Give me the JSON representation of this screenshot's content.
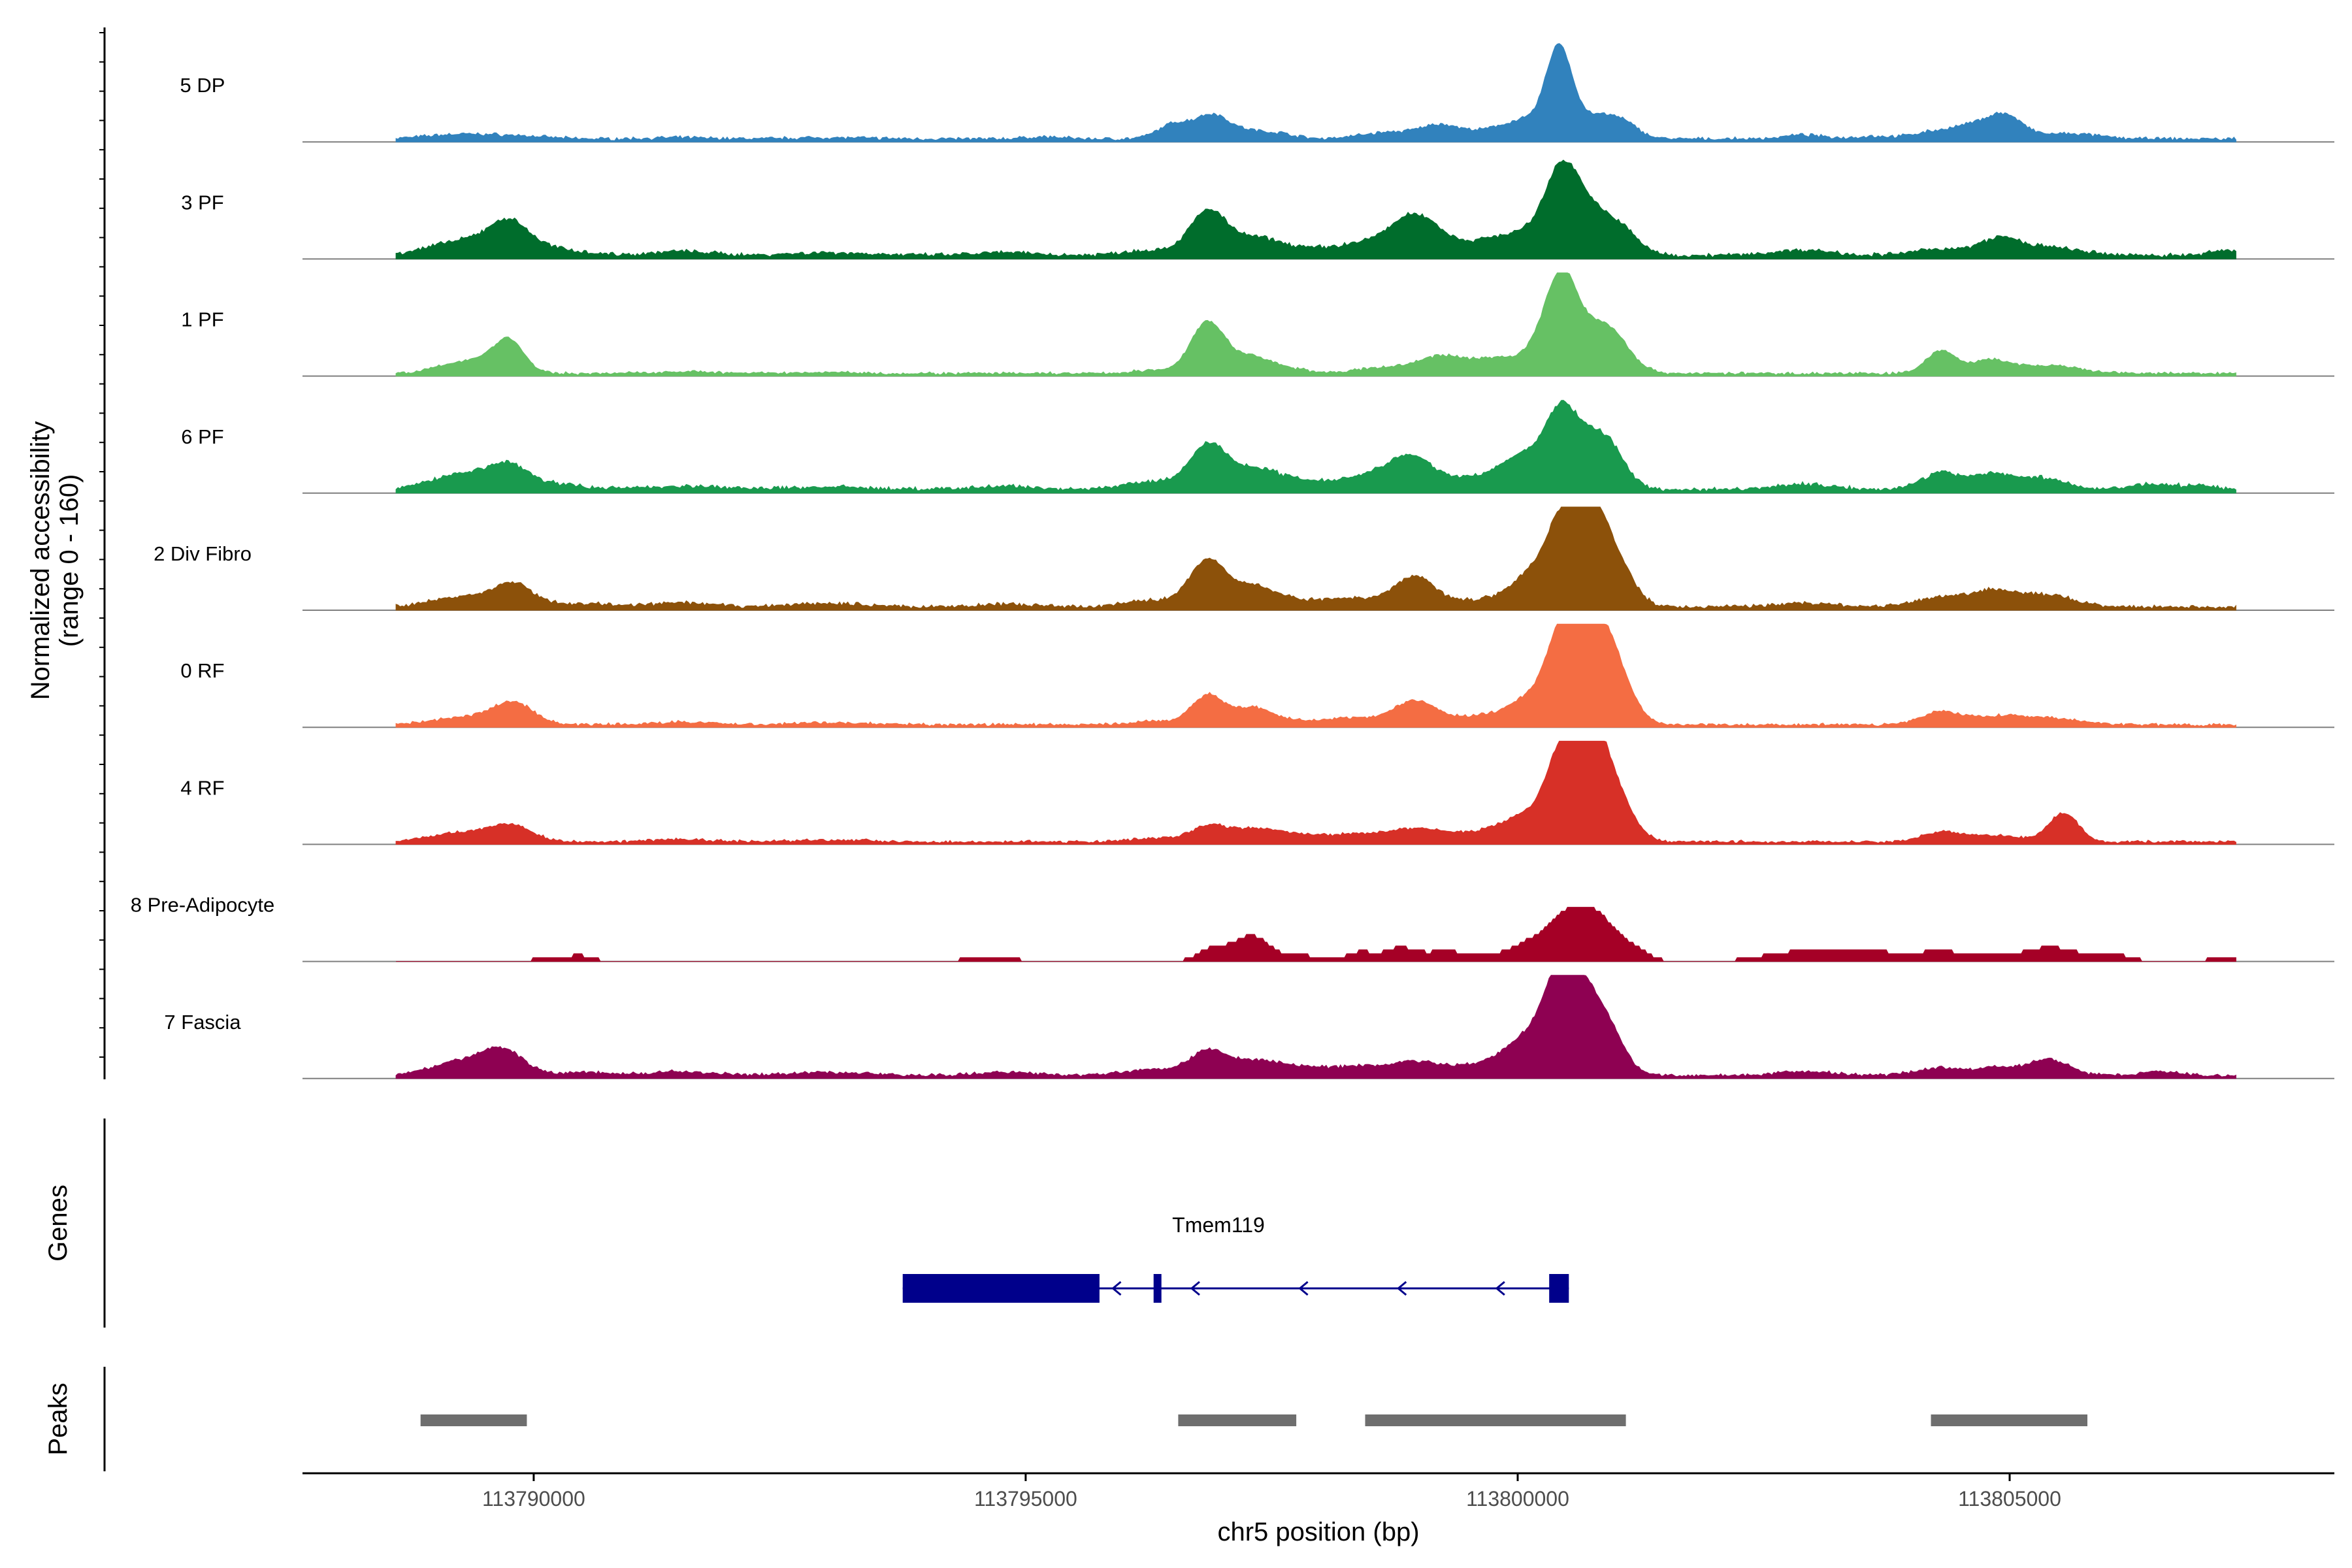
{
  "chart_data": {
    "type": "area",
    "title": "",
    "ylabel_lines": [
      "Normalized accessibility",
      "(range 0 - 160)"
    ],
    "ylim": [
      0,
      160
    ],
    "xlabel": "chr5 position (bp)",
    "xlim": [
      113787650,
      113808300
    ],
    "xticks": [
      {
        "value": 113790000,
        "label": "113790000"
      },
      {
        "value": 113795000,
        "label": "113795000"
      },
      {
        "value": 113800000,
        "label": "113800000"
      },
      {
        "value": 113805000,
        "label": "113805000"
      }
    ],
    "signal_range": [
      113788600,
      113807300
    ],
    "tracks": [
      {
        "name": "5 DP",
        "color": "#3182bd",
        "baseline": 5,
        "noise": 1.5,
        "peaks": [
          [
            113789100,
            3,
            300
          ],
          [
            113789400,
            5,
            350
          ],
          [
            113789900,
            3,
            300
          ],
          [
            113791500,
            2,
            300
          ],
          [
            113793000,
            2,
            400
          ],
          [
            113795200,
            3,
            200
          ],
          [
            113796500,
            22,
            160
          ],
          [
            113796900,
            38,
            180
          ],
          [
            113797300,
            10,
            150
          ],
          [
            113797600,
            8,
            150
          ],
          [
            113798700,
            10,
            300
          ],
          [
            113799200,
            15,
            180
          ],
          [
            113799700,
            12,
            400
          ],
          [
            113800100,
            22,
            220
          ],
          [
            113800420,
            130,
            130
          ],
          [
            113800800,
            35,
            220
          ],
          [
            113801100,
            15,
            150
          ],
          [
            113802900,
            6,
            200
          ],
          [
            113803600,
            4,
            200
          ],
          [
            113804200,
            10,
            200
          ],
          [
            113804600,
            18,
            200
          ],
          [
            113804950,
            35,
            180
          ],
          [
            113805600,
            8,
            300
          ]
        ]
      },
      {
        "name": "3 PF",
        "color": "#006d2c",
        "baseline": 6,
        "noise": 2,
        "peaks": [
          [
            113789100,
            10,
            300
          ],
          [
            113789400,
            15,
            300
          ],
          [
            113789750,
            45,
            200
          ],
          [
            113790200,
            10,
            300
          ],
          [
            113791500,
            6,
            300
          ],
          [
            113793000,
            4,
            400
          ],
          [
            113794800,
            4,
            300
          ],
          [
            113796300,
            8,
            300
          ],
          [
            113796850,
            65,
            180
          ],
          [
            113797300,
            25,
            250
          ],
          [
            113797800,
            10,
            300
          ],
          [
            113798400,
            15,
            250
          ],
          [
            113798950,
            60,
            250
          ],
          [
            113799600,
            12,
            400
          ],
          [
            113800000,
            25,
            300
          ],
          [
            113800450,
            115,
            180
          ],
          [
            113800800,
            60,
            250
          ],
          [
            113801100,
            15,
            150
          ],
          [
            113802900,
            8,
            300
          ],
          [
            113804300,
            10,
            250
          ],
          [
            113804900,
            25,
            200
          ],
          [
            113805400,
            12,
            300
          ],
          [
            113807200,
            8,
            150
          ]
        ]
      },
      {
        "name": "1 PF",
        "color": "#66c164",
        "baseline": 4,
        "noise": 1.5,
        "peaks": [
          [
            113789200,
            10,
            250
          ],
          [
            113789500,
            15,
            250
          ],
          [
            113789750,
            45,
            150
          ],
          [
            113791500,
            3,
            300
          ],
          [
            113793000,
            2,
            300
          ],
          [
            113796300,
            5,
            200
          ],
          [
            113796850,
            80,
            170
          ],
          [
            113797300,
            25,
            200
          ],
          [
            113797700,
            6,
            200
          ],
          [
            113798700,
            10,
            300
          ],
          [
            113799200,
            20,
            200
          ],
          [
            113799800,
            25,
            350
          ],
          [
            113800250,
            30,
            150
          ],
          [
            113800450,
            120,
            150
          ],
          [
            113800800,
            70,
            250
          ],
          [
            113801000,
            15,
            150
          ],
          [
            113804300,
            35,
            150
          ],
          [
            113804800,
            20,
            200
          ],
          [
            113805400,
            12,
            300
          ]
        ]
      },
      {
        "name": "6 PF",
        "color": "#199a4e",
        "baseline": 6,
        "noise": 2,
        "peaks": [
          [
            113789100,
            10,
            250
          ],
          [
            113789400,
            18,
            300
          ],
          [
            113789750,
            30,
            200
          ],
          [
            113790200,
            8,
            300
          ],
          [
            113791500,
            5,
            400
          ],
          [
            113793000,
            4,
            400
          ],
          [
            113794800,
            5,
            300
          ],
          [
            113796300,
            12,
            300
          ],
          [
            113796850,
            65,
            180
          ],
          [
            113797300,
            30,
            250
          ],
          [
            113797800,
            12,
            300
          ],
          [
            113798400,
            15,
            250
          ],
          [
            113798900,
            50,
            250
          ],
          [
            113799600,
            15,
            300
          ],
          [
            113800100,
            50,
            250
          ],
          [
            113800450,
            100,
            160
          ],
          [
            113800800,
            75,
            200
          ],
          [
            113801000,
            20,
            150
          ],
          [
            113802900,
            8,
            300
          ],
          [
            113804300,
            25,
            200
          ],
          [
            113804800,
            22,
            200
          ],
          [
            113805300,
            18,
            250
          ],
          [
            113806400,
            8,
            200
          ],
          [
            113806900,
            6,
            200
          ]
        ]
      },
      {
        "name": "2 Div Fibro",
        "color": "#8c510a",
        "baseline": 5,
        "noise": 2,
        "peaks": [
          [
            113789100,
            8,
            250
          ],
          [
            113789500,
            12,
            300
          ],
          [
            113789800,
            30,
            200
          ],
          [
            113790500,
            5,
            300
          ],
          [
            113791500,
            6,
            300
          ],
          [
            113793000,
            5,
            400
          ],
          [
            113794800,
            4,
            300
          ],
          [
            113796300,
            10,
            300
          ],
          [
            113796850,
            70,
            180
          ],
          [
            113797300,
            30,
            220
          ],
          [
            113797800,
            10,
            300
          ],
          [
            113798400,
            12,
            250
          ],
          [
            113798950,
            45,
            200
          ],
          [
            113799700,
            12,
            400
          ],
          [
            113800150,
            45,
            200
          ],
          [
            113800450,
            120,
            150
          ],
          [
            113800750,
            95,
            150
          ],
          [
            113800900,
            70,
            200
          ],
          [
            113801100,
            15,
            150
          ],
          [
            113802900,
            6,
            300
          ],
          [
            113804300,
            15,
            250
          ],
          [
            113804850,
            25,
            220
          ],
          [
            113805400,
            18,
            250
          ]
        ]
      },
      {
        "name": "0 RF",
        "color": "#f46d43",
        "baseline": 4,
        "noise": 1.5,
        "peaks": [
          [
            113789100,
            5,
            250
          ],
          [
            113789500,
            10,
            300
          ],
          [
            113789800,
            30,
            200
          ],
          [
            113791500,
            4,
            300
          ],
          [
            113793000,
            3,
            400
          ],
          [
            113796300,
            5,
            250
          ],
          [
            113796850,
            45,
            160
          ],
          [
            113797300,
            25,
            200
          ],
          [
            113797800,
            6,
            300
          ],
          [
            113798400,
            10,
            250
          ],
          [
            113798950,
            35,
            200
          ],
          [
            113799700,
            15,
            400
          ],
          [
            113800150,
            35,
            200
          ],
          [
            113800450,
            120,
            150
          ],
          [
            113800750,
            100,
            200
          ],
          [
            113800900,
            75,
            200
          ],
          [
            113801100,
            12,
            150
          ],
          [
            113804300,
            20,
            200
          ],
          [
            113804850,
            12,
            250
          ],
          [
            113805400,
            10,
            300
          ]
        ]
      },
      {
        "name": "4 RF",
        "color": "#d73027",
        "baseline": 4,
        "noise": 1.5,
        "peaks": [
          [
            113789100,
            8,
            250
          ],
          [
            113789500,
            12,
            300
          ],
          [
            113789800,
            20,
            200
          ],
          [
            113791500,
            4,
            300
          ],
          [
            113793000,
            3,
            400
          ],
          [
            113796300,
            5,
            250
          ],
          [
            113796850,
            22,
            180
          ],
          [
            113797300,
            18,
            250
          ],
          [
            113797800,
            10,
            300
          ],
          [
            113798400,
            10,
            250
          ],
          [
            113798950,
            18,
            250
          ],
          [
            113799700,
            15,
            400
          ],
          [
            113800150,
            35,
            250
          ],
          [
            113800450,
            120,
            150
          ],
          [
            113800750,
            110,
            150
          ],
          [
            113800900,
            80,
            200
          ],
          [
            113801100,
            12,
            150
          ],
          [
            113804300,
            15,
            200
          ],
          [
            113804850,
            10,
            250
          ],
          [
            113805550,
            45,
            150
          ]
        ]
      },
      {
        "name": "8 Pre-Adipocyte",
        "color": "#a50026",
        "baseline": 0,
        "noise": 0,
        "peaks": [
          [
            113790200,
            8,
            150
          ],
          [
            113790500,
            8,
            120
          ],
          [
            113794500,
            6,
            150
          ],
          [
            113794800,
            6,
            120
          ],
          [
            113796900,
            20,
            150
          ],
          [
            113797300,
            40,
            180
          ],
          [
            113797800,
            10,
            150
          ],
          [
            113798400,
            15,
            150
          ],
          [
            113798800,
            20,
            150
          ],
          [
            113799200,
            12,
            200
          ],
          [
            113799700,
            12,
            300
          ],
          [
            113800100,
            20,
            150
          ],
          [
            113800450,
            60,
            180
          ],
          [
            113800800,
            70,
            200
          ],
          [
            113801200,
            15,
            150
          ],
          [
            113802700,
            10,
            300
          ],
          [
            113803200,
            15,
            300
          ],
          [
            113803700,
            12,
            300
          ],
          [
            113804300,
            15,
            200
          ],
          [
            113804800,
            10,
            200
          ],
          [
            113805400,
            22,
            250
          ],
          [
            113806000,
            12,
            200
          ],
          [
            113807200,
            8,
            150
          ]
        ]
      },
      {
        "name": "7 Fascia",
        "color": "#8e0152",
        "baseline": 5,
        "noise": 1.5,
        "peaks": [
          [
            113789100,
            12,
            250
          ],
          [
            113789400,
            15,
            250
          ],
          [
            113789700,
            35,
            200
          ],
          [
            113790500,
            5,
            300
          ],
          [
            113791500,
            6,
            300
          ],
          [
            113793000,
            5,
            400
          ],
          [
            113794800,
            5,
            300
          ],
          [
            113796300,
            10,
            300
          ],
          [
            113796850,
            35,
            180
          ],
          [
            113797300,
            20,
            250
          ],
          [
            113797800,
            12,
            300
          ],
          [
            113798400,
            12,
            250
          ],
          [
            113798950,
            20,
            250
          ],
          [
            113799600,
            15,
            300
          ],
          [
            113800150,
            60,
            250
          ],
          [
            113800450,
            130,
            160
          ],
          [
            113800750,
            110,
            200
          ],
          [
            113801000,
            20,
            150
          ],
          [
            113802900,
            6,
            300
          ],
          [
            113804300,
            12,
            250
          ],
          [
            113804900,
            12,
            200
          ],
          [
            113805400,
            25,
            200
          ],
          [
            113806500,
            6,
            200
          ]
        ]
      }
    ],
    "gene": {
      "name": "Tmem119",
      "strand": "-",
      "color": "#00008b",
      "start": 113793750,
      "end": 113800520,
      "exons": [
        [
          113793750,
          113795750
        ],
        [
          113796300,
          113796380
        ],
        [
          113800320,
          113800520
        ]
      ],
      "arrow_positions": [
        113795900,
        113796700,
        113797800,
        113798800,
        113799800
      ]
    },
    "peaks_track": {
      "color": "#6e6e6e",
      "ranges": [
        [
          113788850,
          113789930
        ],
        [
          113796550,
          113797750
        ],
        [
          113798450,
          113801100
        ],
        [
          113804200,
          113805790
        ]
      ]
    },
    "panel_labels": {
      "genes": "Genes",
      "peaks": "Peaks"
    }
  }
}
